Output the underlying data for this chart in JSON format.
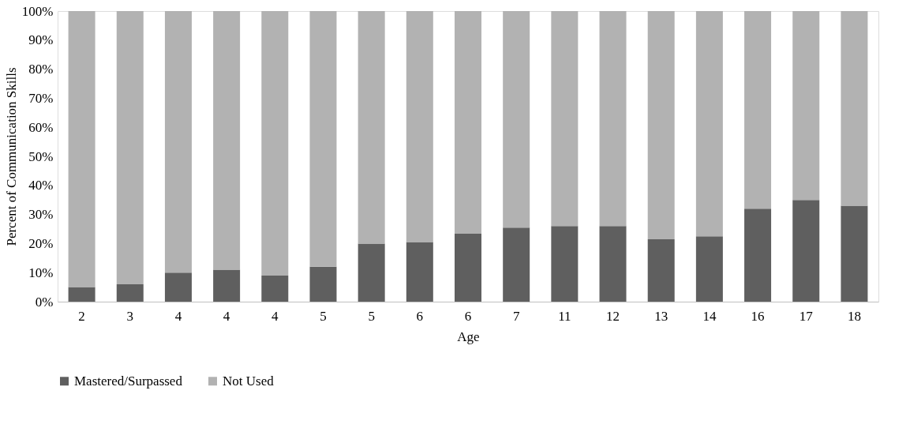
{
  "chart_data": {
    "type": "bar",
    "stacked": true,
    "xlabel": "Age",
    "ylabel": "Percent of Communication Skills",
    "categories": [
      "2",
      "3",
      "4",
      "4",
      "4",
      "5",
      "5",
      "6",
      "6",
      "7",
      "11",
      "12",
      "13",
      "14",
      "16",
      "17",
      "18"
    ],
    "series": [
      {
        "name": "Mastered/Surpassed",
        "color": "#5f5f5f",
        "values": [
          5,
          6,
          10,
          11,
          9,
          12,
          20,
          20.5,
          23.5,
          25.5,
          26,
          26,
          21.5,
          22.5,
          32,
          35,
          33
        ]
      },
      {
        "name": "Not Used",
        "color": "#b2b2b2",
        "values": [
          95,
          94,
          90,
          89,
          91,
          88,
          80,
          79.5,
          76.5,
          74.5,
          74,
          74,
          78.5,
          77.5,
          68,
          65,
          67
        ]
      }
    ],
    "ylim": [
      0,
      100
    ],
    "yticks": [
      {
        "value": 0,
        "label": "0%"
      },
      {
        "value": 10,
        "label": "10%"
      },
      {
        "value": 20,
        "label": "20%"
      },
      {
        "value": 30,
        "label": "30%"
      },
      {
        "value": 40,
        "label": "40%"
      },
      {
        "value": 50,
        "label": "50%"
      },
      {
        "value": 60,
        "label": "60%"
      },
      {
        "value": 70,
        "label": "70%"
      },
      {
        "value": 80,
        "label": "80%"
      },
      {
        "value": 90,
        "label": "90%"
      },
      {
        "value": 100,
        "label": "100%"
      }
    ],
    "grid": false,
    "legend": "bottom"
  }
}
